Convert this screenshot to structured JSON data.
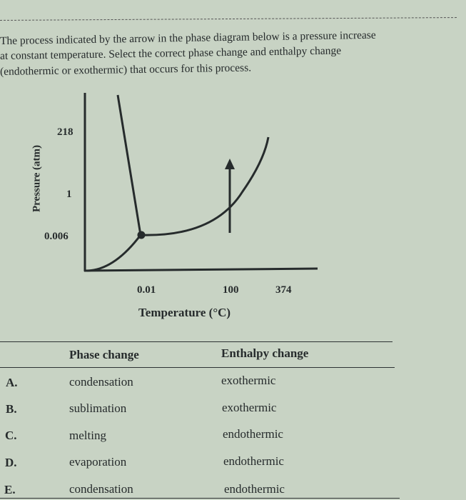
{
  "question": {
    "lines": [
      "The process indicated by the arrow in the phase diagram below is a pressure increase",
      "at constant temperature. Select the correct phase change and enthalpy change",
      "(endothermic or exothermic) that occurs for this process."
    ]
  },
  "diagram": {
    "ylabel": "Pressure (atm)",
    "xlabel": "Temperature (°C)",
    "y_ticks": [
      "218",
      "1",
      "0.006"
    ],
    "x_ticks": [
      "0.01",
      "100",
      "374"
    ],
    "arrow": "pressure increase at constant temperature (~100 °C), crossing liquid-vapor curve"
  },
  "table": {
    "headers": {
      "phase": "Phase change",
      "enthalpy": "Enthalpy change"
    },
    "rows": [
      {
        "letter": "A.",
        "phase": "condensation",
        "enthalpy": "exothermic"
      },
      {
        "letter": "B.",
        "phase": "sublimation",
        "enthalpy": "exothermic"
      },
      {
        "letter": "C.",
        "phase": "melting",
        "enthalpy": "endothermic"
      },
      {
        "letter": "D.",
        "phase": "evaporation",
        "enthalpy": "endothermic"
      },
      {
        "letter": "E.",
        "phase": "condensation",
        "enthalpy": "endothermic"
      }
    ]
  }
}
